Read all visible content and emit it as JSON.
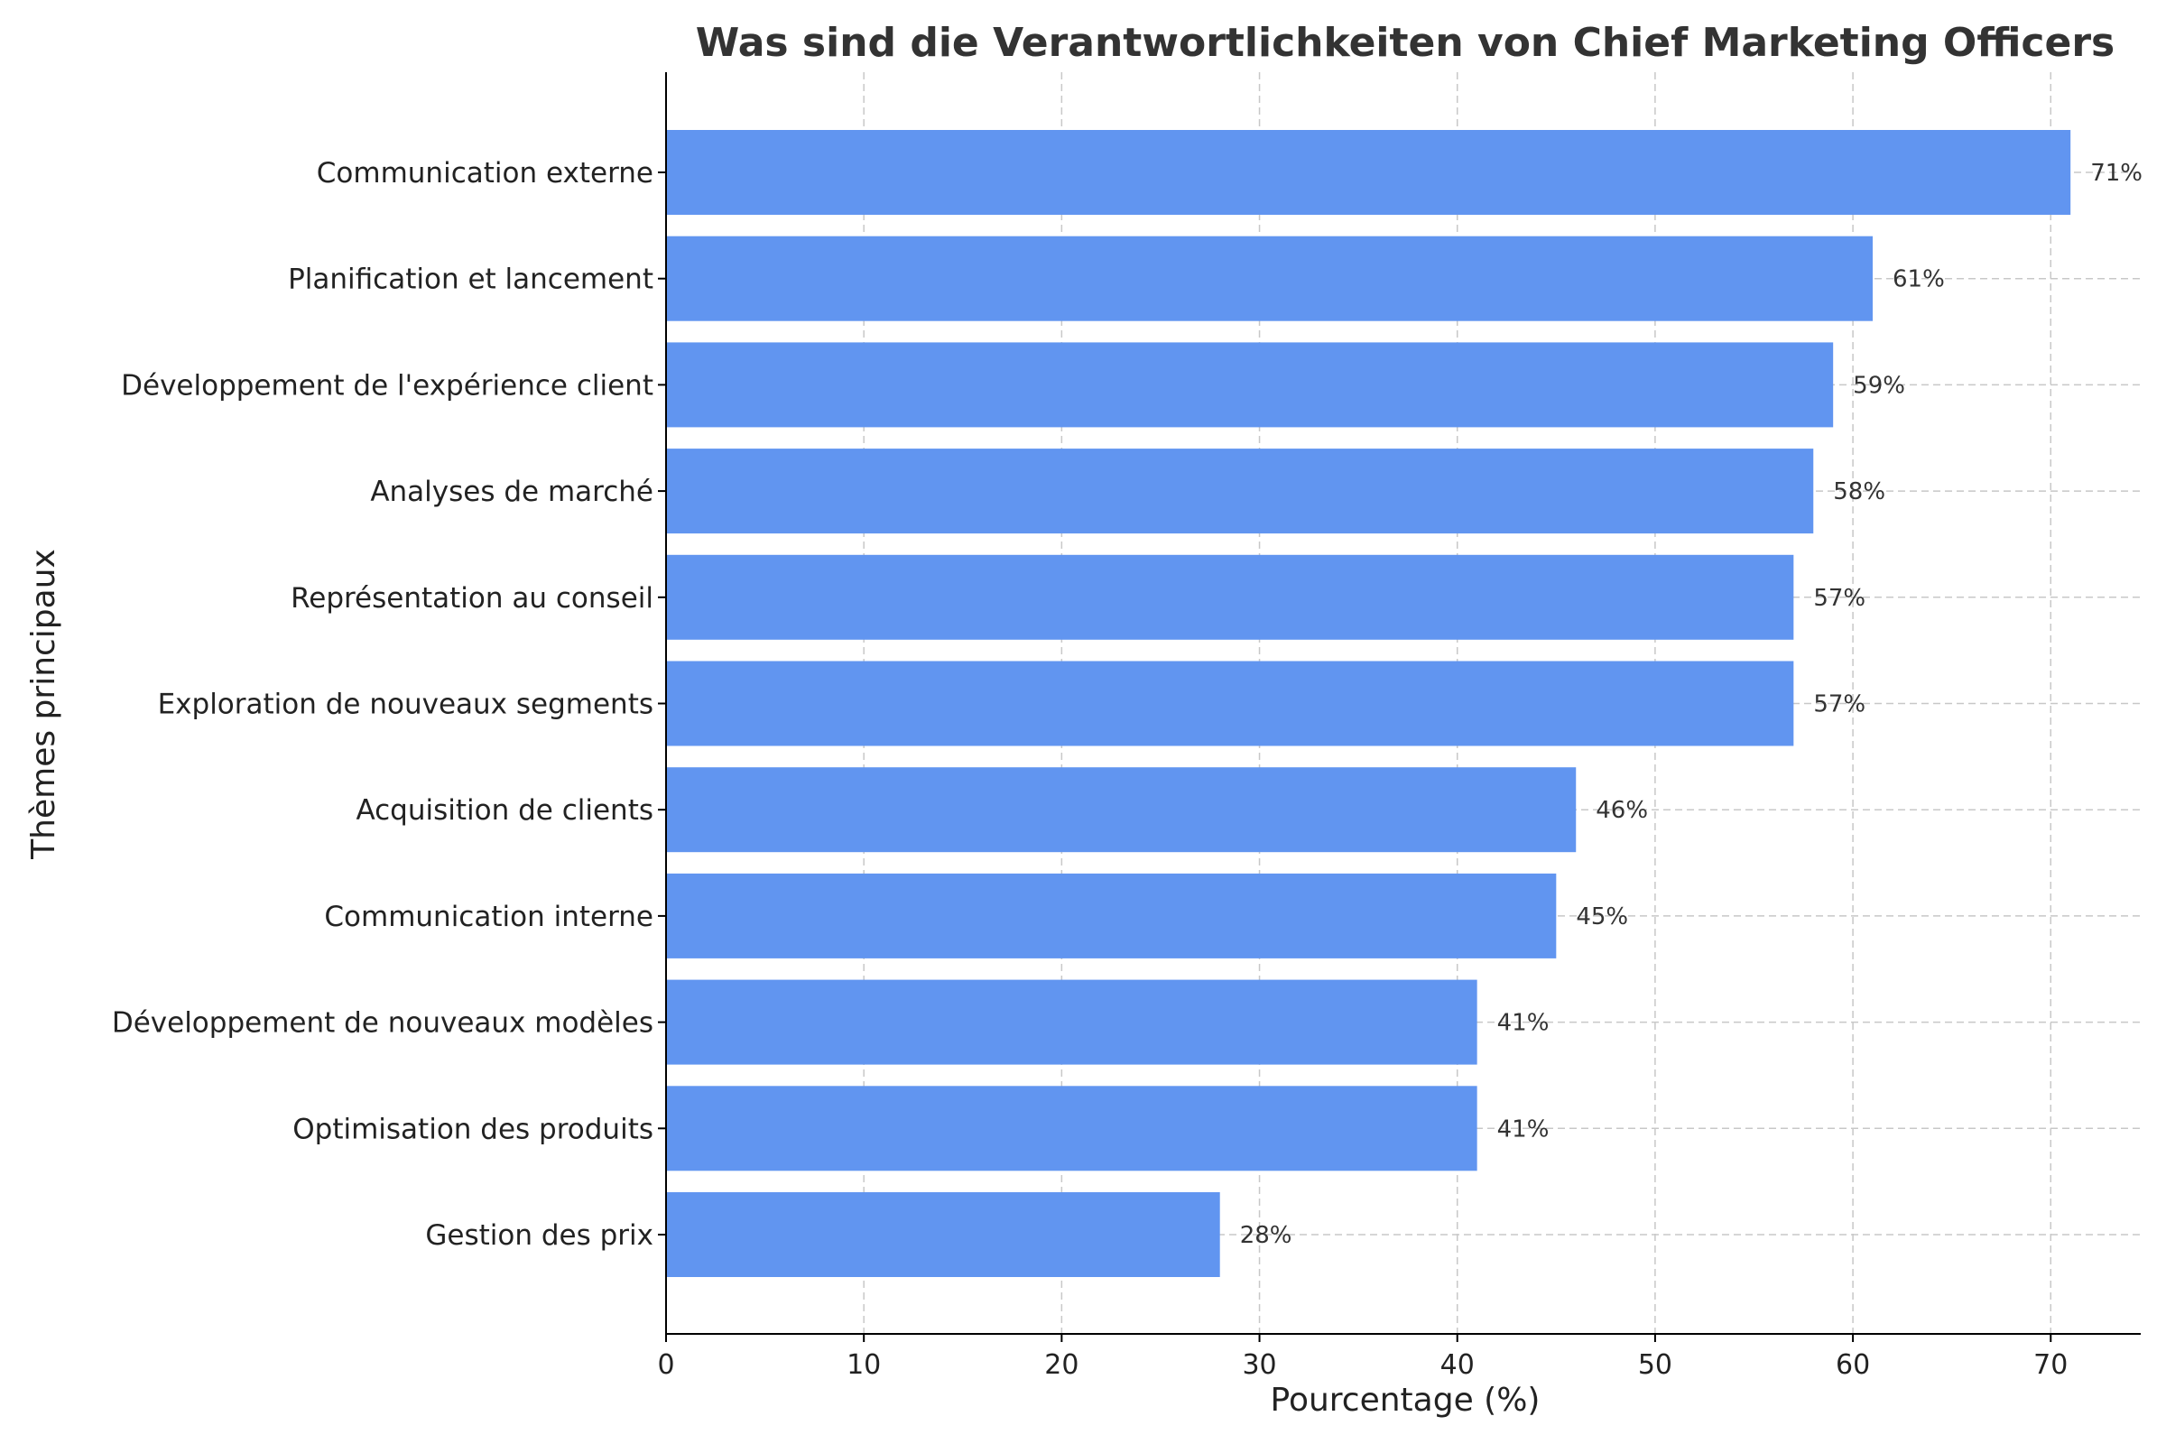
{
  "chart_data": {
    "type": "bar",
    "orientation": "horizontal",
    "title": "Was sind die Verantwortlichkeiten von Chief Marketing Officers",
    "xlabel": "Pourcentage (%)",
    "ylabel": "Thèmes principaux",
    "categories": [
      "Communication externe",
      "Planification et lancement",
      "Développement de l'expérience client",
      "Analyses de marché",
      "Représentation au conseil",
      "Exploration de nouveaux segments",
      "Acquisition de clients",
      "Communication interne",
      "Développement de nouveaux modèles",
      "Optimisation des produits",
      "Gestion des prix"
    ],
    "values": [
      71,
      61,
      59,
      58,
      57,
      57,
      46,
      45,
      41,
      41,
      28
    ],
    "data_labels": [
      "71%",
      "61%",
      "59%",
      "58%",
      "57%",
      "57%",
      "46%",
      "45%",
      "41%",
      "41%",
      "28%"
    ],
    "xlim": [
      0,
      74.55
    ],
    "xticks": [
      0,
      10,
      20,
      30,
      40,
      50,
      60,
      70
    ],
    "grid": true,
    "bar_color": "#6195f0"
  }
}
